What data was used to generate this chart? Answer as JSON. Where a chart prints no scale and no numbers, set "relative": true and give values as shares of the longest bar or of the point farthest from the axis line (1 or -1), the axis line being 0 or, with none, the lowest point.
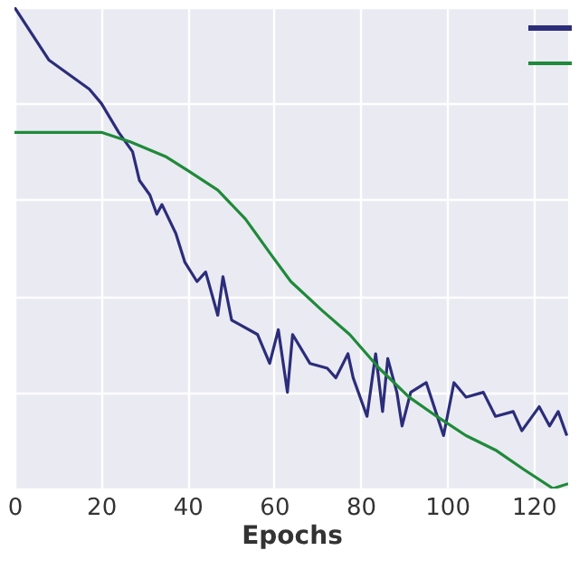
{
  "chart_data": {
    "type": "line",
    "xlabel": "Epochs",
    "relative": true,
    "xlim": [
      0,
      128
    ],
    "xticks": [
      0,
      20,
      40,
      60,
      80,
      100,
      120
    ],
    "grid": true,
    "series": [
      {
        "color": "#2b2d7a",
        "x": [
          0,
          8.0,
          17.3,
          20.1,
          24.1,
          27.3,
          28.9,
          31.3,
          32.9,
          34.1,
          37.3,
          39.4,
          42.2,
          44.2,
          47.0,
          48.2,
          50.2,
          52.2,
          56.2,
          59.0,
          61.0,
          63.1,
          64.3,
          68.3,
          72.3,
          74.3,
          77.1,
          78.3,
          81.5,
          83.5,
          85.1,
          86.3,
          88.4,
          89.6,
          91.6,
          95.2,
          99.2,
          101.6,
          104.4,
          108.4,
          111.2,
          115.3,
          117.3,
          121.3,
          123.7,
          125.7,
          127.7
        ],
        "values": [
          1.0,
          0.89,
          0.83,
          0.8,
          0.74,
          0.7,
          0.64,
          0.61,
          0.57,
          0.59,
          0.53,
          0.47,
          0.43,
          0.45,
          0.36,
          0.44,
          0.35,
          0.34,
          0.32,
          0.26,
          0.33,
          0.2,
          0.32,
          0.26,
          0.25,
          0.23,
          0.28,
          0.23,
          0.15,
          0.28,
          0.16,
          0.27,
          0.2,
          0.13,
          0.2,
          0.22,
          0.11,
          0.22,
          0.19,
          0.2,
          0.15,
          0.16,
          0.12,
          0.17,
          0.13,
          0.16,
          0.11
        ]
      },
      {
        "color": "#1f8a3a",
        "x": [
          0,
          9.2,
          20.1,
          26.9,
          34.9,
          40.2,
          47.0,
          53.4,
          59.0,
          63.9,
          71.1,
          77.5,
          84.3,
          91.2,
          97.6,
          104.4,
          111.2,
          117.7,
          124.5,
          128
        ],
        "values": [
          0.74,
          0.74,
          0.74,
          0.72,
          0.69,
          0.66,
          0.62,
          0.56,
          0.49,
          0.43,
          0.37,
          0.32,
          0.25,
          0.19,
          0.15,
          0.11,
          0.08,
          0.04,
          0.0,
          0.01
        ]
      }
    ]
  }
}
